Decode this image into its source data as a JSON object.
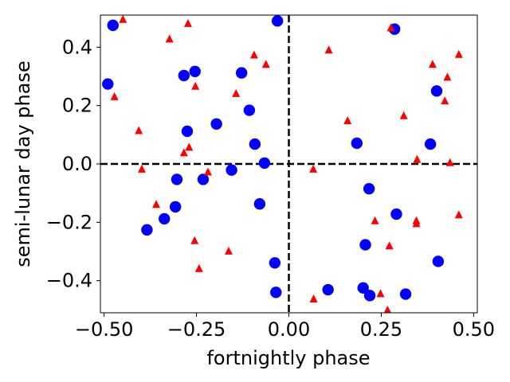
{
  "chart_data": {
    "type": "scatter",
    "title": "",
    "xlabel": "fortnightly phase",
    "ylabel": "semi-lunar day phase",
    "xlim": [
      -0.51,
      0.51
    ],
    "ylim": [
      -0.51,
      0.51
    ],
    "grid": false,
    "x_ticks": [
      -0.5,
      -0.25,
      0.0,
      0.25,
      0.5
    ],
    "x_tick_labels": [
      "−0.50",
      "−0.25",
      "0.00",
      "0.25",
      "0.50"
    ],
    "y_ticks": [
      -0.4,
      -0.2,
      0.0,
      0.2,
      0.4
    ],
    "y_tick_labels": [
      "−0.4",
      "−0.2",
      "0.0",
      "0.2",
      "0.4"
    ],
    "reference_lines": {
      "x": 0.0,
      "y": 0.0,
      "style": "dashed",
      "color": "#000000"
    },
    "series": [
      {
        "marker": "circle",
        "color": "#0000ff",
        "points": [
          [
            -0.476,
            0.475
          ],
          [
            -0.031,
            0.49
          ],
          [
            0.286,
            0.462
          ],
          [
            -0.49,
            0.274
          ],
          [
            -0.254,
            0.317
          ],
          [
            -0.284,
            0.303
          ],
          [
            -0.128,
            0.312
          ],
          [
            0.4,
            0.25
          ],
          [
            -0.107,
            0.184
          ],
          [
            -0.196,
            0.137
          ],
          [
            -0.275,
            0.112
          ],
          [
            -0.092,
            0.068
          ],
          [
            0.184,
            0.071
          ],
          [
            0.383,
            0.068
          ],
          [
            -0.066,
            0.003
          ],
          [
            -0.155,
            -0.021
          ],
          [
            -0.303,
            -0.053
          ],
          [
            -0.232,
            -0.053
          ],
          [
            0.217,
            -0.085
          ],
          [
            -0.079,
            -0.137
          ],
          [
            -0.307,
            -0.147
          ],
          [
            0.291,
            -0.172
          ],
          [
            -0.337,
            -0.188
          ],
          [
            -0.384,
            -0.226
          ],
          [
            0.207,
            -0.277
          ],
          [
            -0.038,
            -0.339
          ],
          [
            0.404,
            -0.334
          ],
          [
            -0.035,
            -0.44
          ],
          [
            0.106,
            -0.431
          ],
          [
            0.201,
            -0.425
          ],
          [
            0.219,
            -0.451
          ],
          [
            0.316,
            -0.446
          ]
        ]
      },
      {
        "marker": "triangle",
        "color": "#ff0000",
        "points": [
          [
            -0.449,
            0.497
          ],
          [
            -0.273,
            0.483
          ],
          [
            0.276,
            0.468
          ],
          [
            -0.323,
            0.43
          ],
          [
            0.108,
            0.392
          ],
          [
            0.46,
            0.377
          ],
          [
            -0.094,
            0.375
          ],
          [
            -0.062,
            0.343
          ],
          [
            0.389,
            0.343
          ],
          [
            0.429,
            0.299
          ],
          [
            -0.253,
            0.268
          ],
          [
            -0.143,
            0.243
          ],
          [
            -0.472,
            0.232
          ],
          [
            0.422,
            0.218
          ],
          [
            0.311,
            0.167
          ],
          [
            0.159,
            0.15
          ],
          [
            -0.406,
            0.116
          ],
          [
            -0.27,
            0.059
          ],
          [
            -0.284,
            0.04
          ],
          [
            0.347,
            0.017
          ],
          [
            0.436,
            0.006
          ],
          [
            -0.398,
            -0.016
          ],
          [
            0.066,
            -0.016
          ],
          [
            -0.219,
            -0.026
          ],
          [
            -0.359,
            -0.137
          ],
          [
            0.233,
            -0.193
          ],
          [
            0.345,
            -0.193
          ],
          [
            0.345,
            -0.203
          ],
          [
            0.46,
            -0.173
          ],
          [
            -0.255,
            -0.261
          ],
          [
            0.272,
            -0.279
          ],
          [
            -0.163,
            -0.297
          ],
          [
            -0.243,
            -0.357
          ],
          [
            0.067,
            -0.461
          ],
          [
            0.248,
            -0.443
          ],
          [
            0.267,
            -0.499
          ]
        ]
      }
    ]
  }
}
